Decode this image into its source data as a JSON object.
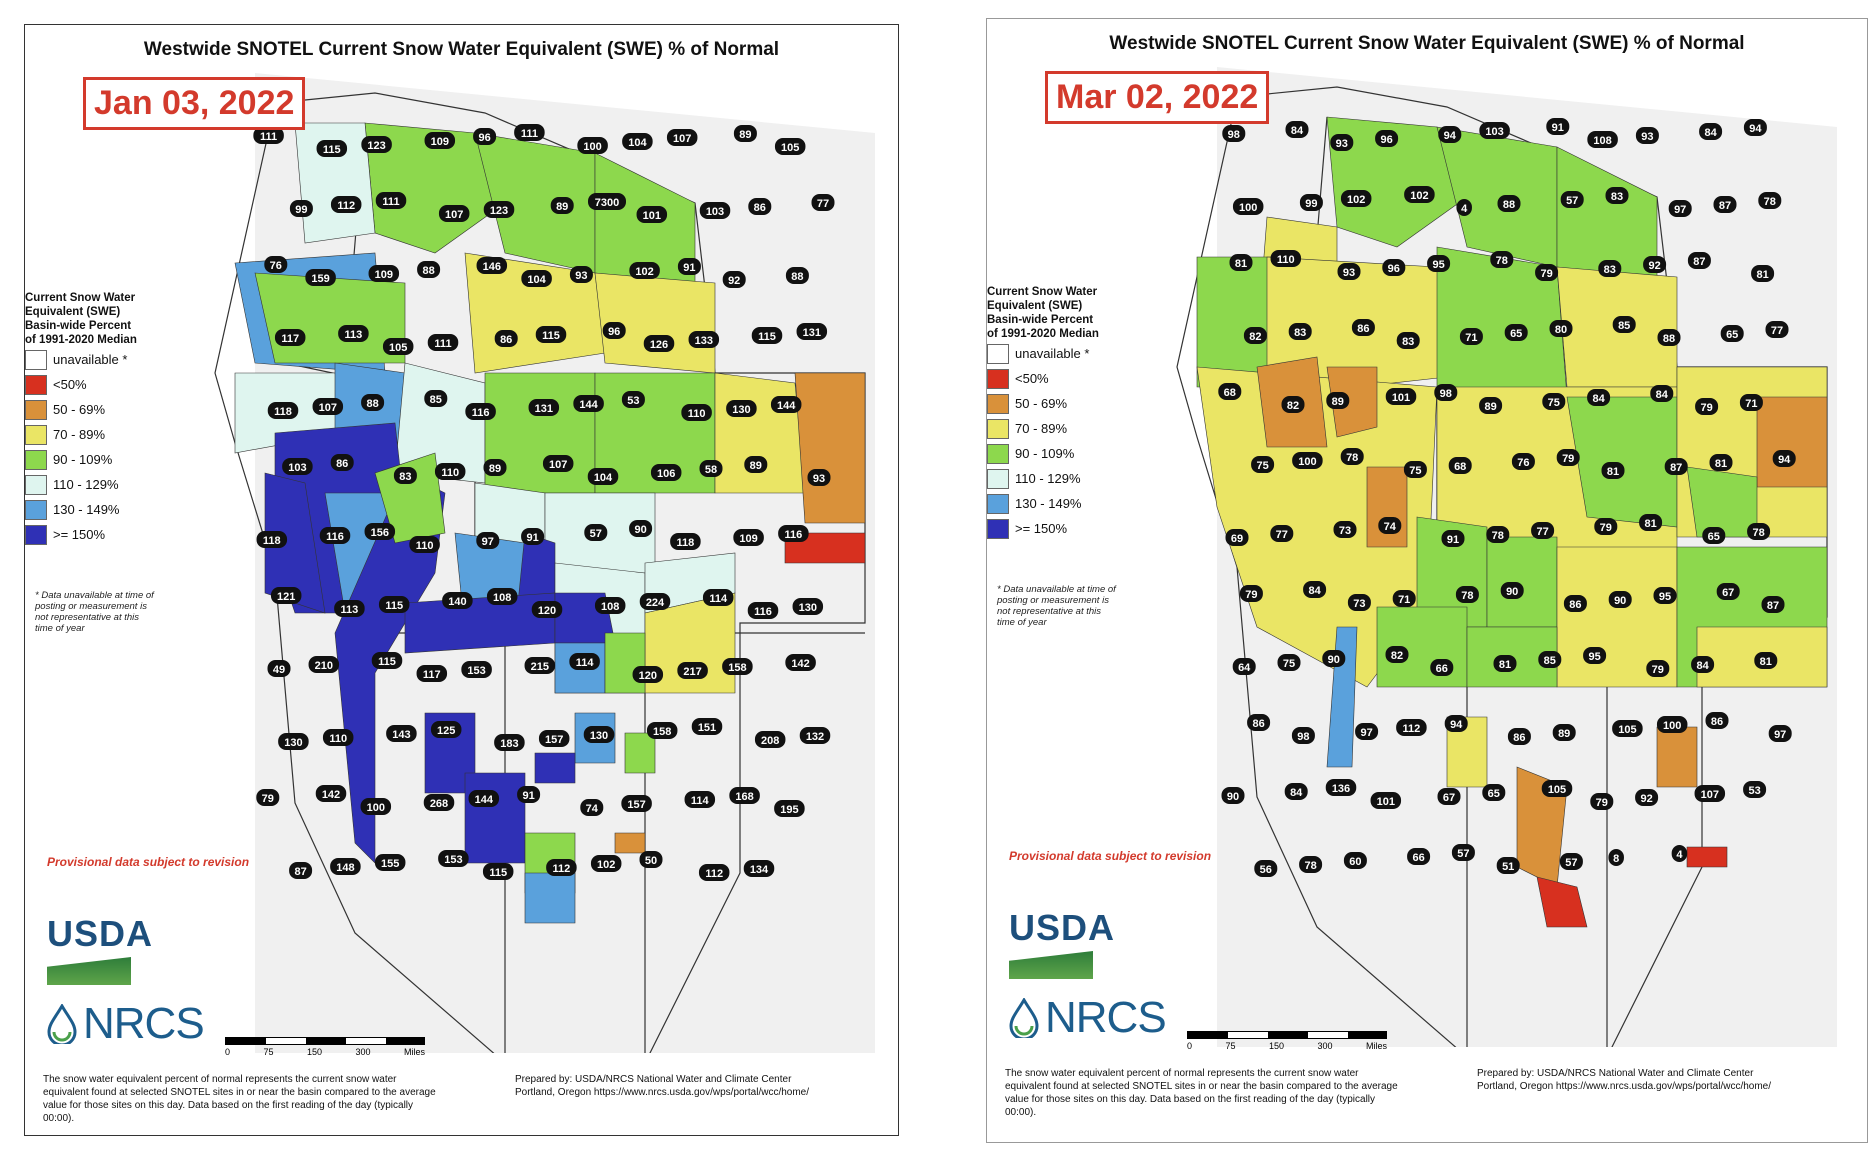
{
  "common": {
    "title": "Westwide SNOTEL Current Snow Water Equivalent (SWE) % of Normal",
    "legend_title_lines": [
      "Current Snow Water",
      "Equivalent (SWE)",
      "Basin-wide Percent",
      "of 1991-2020 Median"
    ],
    "legend": [
      {
        "label": "unavailable *",
        "color": "#ffffff"
      },
      {
        "label": "<50%",
        "color": "#d7301f"
      },
      {
        "label": "50 - 69%",
        "color": "#d9913a"
      },
      {
        "label": "70 - 89%",
        "color": "#eae565"
      },
      {
        "label": "90 - 109%",
        "color": "#8dd84d"
      },
      {
        "label": "110 - 129%",
        "color": "#dff5ef"
      },
      {
        "label": "130 - 149%",
        "color": "#5aa1dc"
      },
      {
        "label": ">= 150%",
        "color": "#2f30b5"
      }
    ],
    "note": "* Data unavailable at time of posting or measurement is not representative at this time of year",
    "provisional": "Provisional data subject to revision",
    "usda": "USDA",
    "nrcs": "NRCS",
    "scale_labels": [
      "0",
      "75",
      "150",
      "300"
    ],
    "scale_unit": "Miles",
    "footer": "The snow water equivalent percent of normal represents the current snow water equivalent found at selected SNOTEL sites in or near the basin compared to the average value for those sites on this day. Data based on the first reading of the day (typically 00:00).",
    "prepared": "Prepared by: USDA/NRCS National Water and Climate Center Portland, Oregon https://www.nrcs.usda.gov/wps/portal/wcc/home/"
  },
  "left": {
    "date": "Jan 03, 2022",
    "basins": [
      {
        "v": "111"
      },
      {
        "v": "115"
      },
      {
        "v": "123"
      },
      {
        "v": "109"
      },
      {
        "v": "96"
      },
      {
        "v": "111"
      },
      {
        "v": "100"
      },
      {
        "v": "104"
      },
      {
        "v": "107"
      },
      {
        "v": "89"
      },
      {
        "v": "105"
      },
      {
        "v": "99"
      },
      {
        "v": "112"
      },
      {
        "v": "111"
      },
      {
        "v": "107"
      },
      {
        "v": "123"
      },
      {
        "v": "89"
      },
      {
        "v": "7300"
      },
      {
        "v": "101"
      },
      {
        "v": "103"
      },
      {
        "v": "86"
      },
      {
        "v": "77"
      },
      {
        "v": "76"
      },
      {
        "v": "159"
      },
      {
        "v": "109"
      },
      {
        "v": "88"
      },
      {
        "v": "146"
      },
      {
        "v": "104"
      },
      {
        "v": "93"
      },
      {
        "v": "102"
      },
      {
        "v": "91"
      },
      {
        "v": "92"
      },
      {
        "v": "88"
      },
      {
        "v": "117"
      },
      {
        "v": "113"
      },
      {
        "v": "105"
      },
      {
        "v": "111"
      },
      {
        "v": "86"
      },
      {
        "v": "115"
      },
      {
        "v": "96"
      },
      {
        "v": "126"
      },
      {
        "v": "133"
      },
      {
        "v": "115"
      },
      {
        "v": "131"
      },
      {
        "v": "118"
      },
      {
        "v": "107"
      },
      {
        "v": "88"
      },
      {
        "v": "85"
      },
      {
        "v": "116"
      },
      {
        "v": "131"
      },
      {
        "v": "144"
      },
      {
        "v": "53"
      },
      {
        "v": "110"
      },
      {
        "v": "130"
      },
      {
        "v": "144"
      },
      {
        "v": "103"
      },
      {
        "v": "86"
      },
      {
        "v": "83"
      },
      {
        "v": "110"
      },
      {
        "v": "89"
      },
      {
        "v": "107"
      },
      {
        "v": "104"
      },
      {
        "v": "106"
      },
      {
        "v": "58"
      },
      {
        "v": "89"
      },
      {
        "v": "93"
      },
      {
        "v": "118"
      },
      {
        "v": "116"
      },
      {
        "v": "156"
      },
      {
        "v": "110"
      },
      {
        "v": "97"
      },
      {
        "v": "91"
      },
      {
        "v": "57"
      },
      {
        "v": "90"
      },
      {
        "v": "118"
      },
      {
        "v": "109"
      },
      {
        "v": "116"
      },
      {
        "v": "121"
      },
      {
        "v": "113"
      },
      {
        "v": "115"
      },
      {
        "v": "140"
      },
      {
        "v": "108"
      },
      {
        "v": "120"
      },
      {
        "v": "108"
      },
      {
        "v": "224"
      },
      {
        "v": "114"
      },
      {
        "v": "116"
      },
      {
        "v": "130"
      },
      {
        "v": "49"
      },
      {
        "v": "210"
      },
      {
        "v": "115"
      },
      {
        "v": "117"
      },
      {
        "v": "153"
      },
      {
        "v": "215"
      },
      {
        "v": "114"
      },
      {
        "v": "120"
      },
      {
        "v": "217"
      },
      {
        "v": "158"
      },
      {
        "v": "142"
      },
      {
        "v": "130"
      },
      {
        "v": "110"
      },
      {
        "v": "143"
      },
      {
        "v": "125"
      },
      {
        "v": "183"
      },
      {
        "v": "157"
      },
      {
        "v": "130"
      },
      {
        "v": "158"
      },
      {
        "v": "151"
      },
      {
        "v": "208"
      },
      {
        "v": "132"
      },
      {
        "v": "79"
      },
      {
        "v": "142"
      },
      {
        "v": "100"
      },
      {
        "v": "268"
      },
      {
        "v": "144"
      },
      {
        "v": "91"
      },
      {
        "v": "74"
      },
      {
        "v": "157"
      },
      {
        "v": "114"
      },
      {
        "v": "168"
      },
      {
        "v": "195"
      },
      {
        "v": "87"
      },
      {
        "v": "148"
      },
      {
        "v": "155"
      },
      {
        "v": "153"
      },
      {
        "v": "115"
      },
      {
        "v": "112"
      },
      {
        "v": "102"
      },
      {
        "v": "50"
      },
      {
        "v": "112"
      },
      {
        "v": "134"
      }
    ]
  },
  "right": {
    "date": "Mar 02, 2022",
    "basins": [
      {
        "v": "98"
      },
      {
        "v": "84"
      },
      {
        "v": "93"
      },
      {
        "v": "96"
      },
      {
        "v": "94"
      },
      {
        "v": "103"
      },
      {
        "v": "91"
      },
      {
        "v": "108"
      },
      {
        "v": "93"
      },
      {
        "v": "84"
      },
      {
        "v": "94"
      },
      {
        "v": "100"
      },
      {
        "v": "99"
      },
      {
        "v": "102"
      },
      {
        "v": "102"
      },
      {
        "v": "4"
      },
      {
        "v": "88"
      },
      {
        "v": "57"
      },
      {
        "v": "83"
      },
      {
        "v": "97"
      },
      {
        "v": "87"
      },
      {
        "v": "78"
      },
      {
        "v": "81"
      },
      {
        "v": "110"
      },
      {
        "v": "93"
      },
      {
        "v": "96"
      },
      {
        "v": "95"
      },
      {
        "v": "78"
      },
      {
        "v": "79"
      },
      {
        "v": "83"
      },
      {
        "v": "92"
      },
      {
        "v": "87"
      },
      {
        "v": "81"
      },
      {
        "v": "82"
      },
      {
        "v": "83"
      },
      {
        "v": "86"
      },
      {
        "v": "83"
      },
      {
        "v": "71"
      },
      {
        "v": "65"
      },
      {
        "v": "80"
      },
      {
        "v": "85"
      },
      {
        "v": "88"
      },
      {
        "v": "65"
      },
      {
        "v": "77"
      },
      {
        "v": "68"
      },
      {
        "v": "82"
      },
      {
        "v": "89"
      },
      {
        "v": "101"
      },
      {
        "v": "98"
      },
      {
        "v": "89"
      },
      {
        "v": "75"
      },
      {
        "v": "84"
      },
      {
        "v": "84"
      },
      {
        "v": "79"
      },
      {
        "v": "71"
      },
      {
        "v": "75"
      },
      {
        "v": "100"
      },
      {
        "v": "78"
      },
      {
        "v": "75"
      },
      {
        "v": "68"
      },
      {
        "v": "76"
      },
      {
        "v": "79"
      },
      {
        "v": "81"
      },
      {
        "v": "87"
      },
      {
        "v": "81"
      },
      {
        "v": "94"
      },
      {
        "v": "69"
      },
      {
        "v": "77"
      },
      {
        "v": "73"
      },
      {
        "v": "74"
      },
      {
        "v": "91"
      },
      {
        "v": "78"
      },
      {
        "v": "77"
      },
      {
        "v": "79"
      },
      {
        "v": "81"
      },
      {
        "v": "65"
      },
      {
        "v": "78"
      },
      {
        "v": "79"
      },
      {
        "v": "84"
      },
      {
        "v": "73"
      },
      {
        "v": "71"
      },
      {
        "v": "78"
      },
      {
        "v": "90"
      },
      {
        "v": "86"
      },
      {
        "v": "90"
      },
      {
        "v": "95"
      },
      {
        "v": "67"
      },
      {
        "v": "87"
      },
      {
        "v": "64"
      },
      {
        "v": "75"
      },
      {
        "v": "90"
      },
      {
        "v": "82"
      },
      {
        "v": "66"
      },
      {
        "v": "81"
      },
      {
        "v": "85"
      },
      {
        "v": "95"
      },
      {
        "v": "79"
      },
      {
        "v": "84"
      },
      {
        "v": "81"
      },
      {
        "v": "86"
      },
      {
        "v": "98"
      },
      {
        "v": "97"
      },
      {
        "v": "112"
      },
      {
        "v": "94"
      },
      {
        "v": "86"
      },
      {
        "v": "89"
      },
      {
        "v": "105"
      },
      {
        "v": "100"
      },
      {
        "v": "86"
      },
      {
        "v": "97"
      },
      {
        "v": "90"
      },
      {
        "v": "84"
      },
      {
        "v": "136"
      },
      {
        "v": "101"
      },
      {
        "v": "67"
      },
      {
        "v": "65"
      },
      {
        "v": "105"
      },
      {
        "v": "79"
      },
      {
        "v": "92"
      },
      {
        "v": "107"
      },
      {
        "v": "53"
      },
      {
        "v": "56"
      },
      {
        "v": "78"
      },
      {
        "v": "60"
      },
      {
        "v": "66"
      },
      {
        "v": "57"
      },
      {
        "v": "51"
      },
      {
        "v": "57"
      },
      {
        "v": "8"
      },
      {
        "v": "4"
      }
    ]
  }
}
